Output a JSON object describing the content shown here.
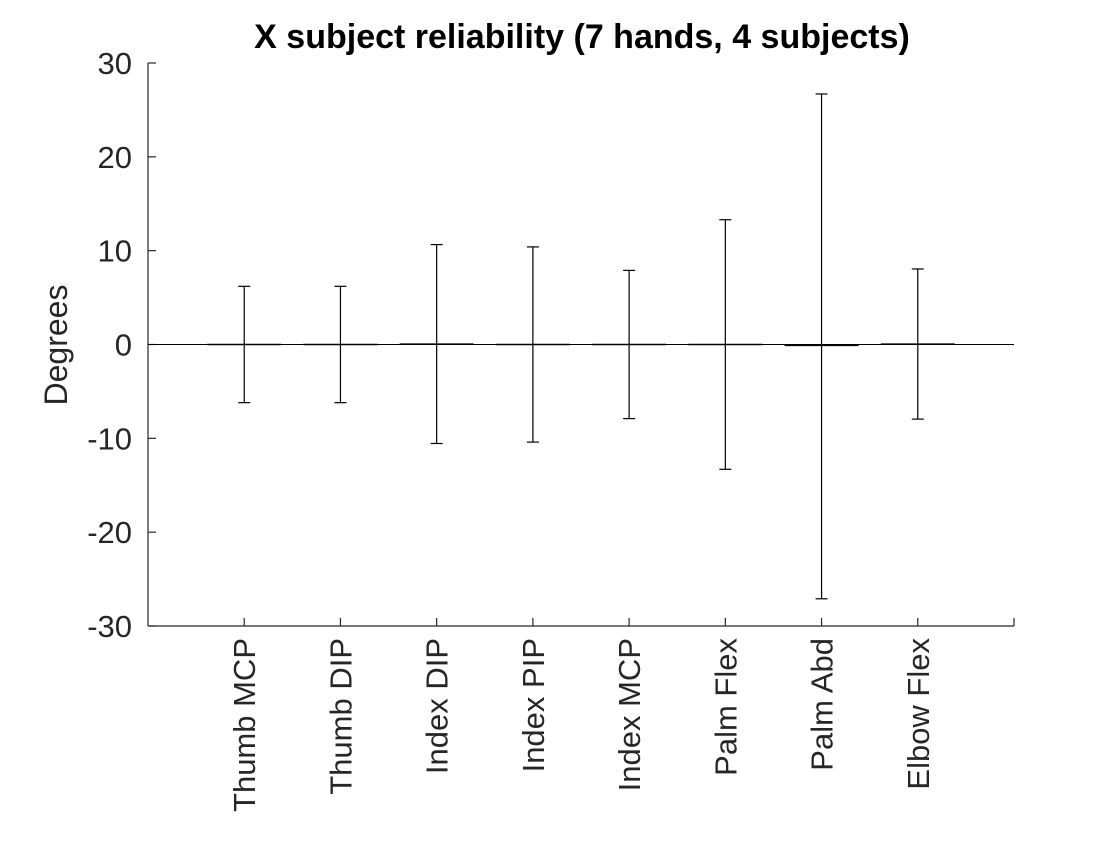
{
  "chart_data": {
    "type": "errorbar",
    "title": "X subject reliability (7 hands, 4 subjects)",
    "xlabel": "",
    "ylabel": "Degrees",
    "ylim": [
      -30,
      30
    ],
    "yticks": [
      -30,
      -20,
      -10,
      0,
      10,
      20,
      30
    ],
    "ytick_labels": [
      "-30",
      "-20",
      "-10",
      "0",
      "10",
      "20",
      "30"
    ],
    "xlim": [
      0,
      9
    ],
    "grid": false,
    "legend": "none",
    "reference_line": 0,
    "categories": [
      "Thumb MCP",
      "Thumb DIP",
      "Index DIP",
      "Index PIP",
      "Index MCP",
      "Palm Flex",
      "Palm Abd",
      "Elbow Flex"
    ],
    "series": [
      {
        "values": [
          0,
          0,
          0.05,
          0,
          0,
          0,
          -0.1,
          0.05
        ],
        "error_plus": [
          6.2,
          6.2,
          10.6,
          10.4,
          7.9,
          13.3,
          26.8,
          8.0
        ],
        "error_minus": [
          6.2,
          6.2,
          10.6,
          10.4,
          7.9,
          13.3,
          27.0,
          8.0
        ]
      }
    ],
    "colors": {
      "axis": "#262626",
      "marks": "#000000"
    }
  }
}
